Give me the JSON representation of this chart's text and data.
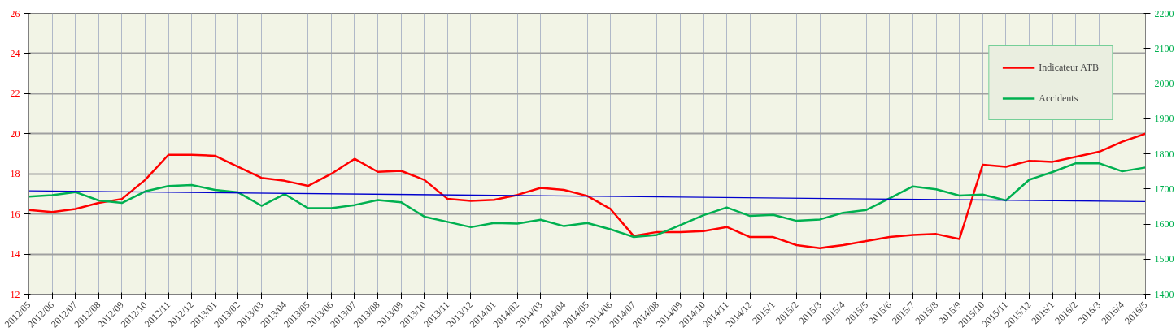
{
  "chart_data": {
    "type": "line",
    "categories": [
      "2012/05",
      "2012/06",
      "2012/07",
      "2012/08",
      "2012/09",
      "2012/10",
      "2012/11",
      "2012/12",
      "2013/01",
      "2013/02",
      "2013/03",
      "2013/04",
      "2013/05",
      "2013/06",
      "2013/07",
      "2013/08",
      "2013/09",
      "2013/10",
      "2013/11",
      "2013/12",
      "2014/01",
      "2014/02",
      "2014/03",
      "2014/04",
      "2014/05",
      "2014/06",
      "2014/07",
      "2014/08",
      "2014/09",
      "2014/10",
      "2014/11",
      "2014/12",
      "2015/1",
      "2015/2",
      "2015/3",
      "2015/4",
      "2015/5",
      "2015/6",
      "2015/7",
      "2015/8",
      "2015/9",
      "2015/10",
      "2015/11",
      "2015/12",
      "2016/1",
      "2016/2",
      "2016/3",
      "2016/4",
      "2016/5"
    ],
    "series": [
      {
        "name": "Indicateur ATB",
        "color": "#ff0000",
        "values": [
          16.2,
          16.1,
          16.25,
          16.55,
          16.75,
          17.7,
          18.95,
          18.95,
          18.9,
          18.35,
          17.8,
          17.65,
          17.4,
          18.0,
          18.75,
          18.1,
          18.15,
          17.7,
          16.75,
          16.65,
          16.7,
          16.95,
          17.3,
          17.2,
          16.9,
          16.25,
          14.9,
          15.1,
          15.1,
          15.15,
          15.35,
          14.85,
          14.85,
          14.45,
          14.3,
          14.45,
          14.65,
          14.85,
          14.95,
          15.0,
          14.75,
          18.45,
          18.35,
          18.65,
          18.6,
          18.85,
          19.1,
          19.6,
          20.0
        ]
      },
      {
        "name": "Accidents",
        "color": "#00b050",
        "axis": "y2",
        "values": [
          1678,
          1682,
          1691,
          1667,
          1660,
          1693,
          1708,
          1711,
          1697,
          1690,
          1652,
          1685,
          1645,
          1645,
          1654,
          1668,
          1662,
          1621,
          1606,
          1591,
          1603,
          1601,
          1612,
          1594,
          1603,
          1585,
          1563,
          1569,
          1597,
          1625,
          1647,
          1623,
          1626,
          1609,
          1613,
          1632,
          1640,
          1673,
          1707,
          1699,
          1681,
          1684,
          1667,
          1726,
          1748,
          1773,
          1773,
          1750,
          1761
        ]
      },
      {
        "color": "#0000cc",
        "x": [
          "2012/05",
          "2016/5"
        ],
        "values": [
          17.15,
          16.62
        ]
      }
    ],
    "ylim": [
      12,
      26
    ],
    "yticks": [
      12,
      14,
      16,
      18,
      20,
      22,
      24,
      26
    ],
    "y2lim": [
      1400,
      2200
    ],
    "y2ticks": [
      1400,
      1500,
      1600,
      1700,
      1800,
      1900,
      2000,
      2100,
      2200
    ],
    "grid": true,
    "legend": "top right"
  }
}
